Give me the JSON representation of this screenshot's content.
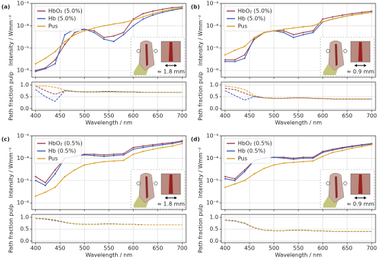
{
  "chart_data": [
    {
      "type": "line",
      "label": "(a)",
      "y_label": "Intensity / Wmm⁻²",
      "yscale": "log",
      "grid": true,
      "legend": "upper left",
      "annotation": "≈ 1.8 mm",
      "x": [
        400,
        420,
        440,
        460,
        480,
        500,
        520,
        540,
        560,
        580,
        600,
        620,
        640,
        660,
        680,
        700
      ],
      "xlim": [
        392,
        708
      ],
      "xticks": [
        400,
        450,
        500,
        550,
        600,
        650,
        700
      ],
      "ylim": [
        5e-07,
        0.001
      ],
      "yticks": [
        {
          "value": 1e-06,
          "label": "10⁻⁶"
        },
        {
          "value": 1e-05,
          "label": "10⁻⁵"
        },
        {
          "value": 0.0001,
          "label": "10⁻⁴"
        },
        {
          "value": 0.001,
          "label": "10⁻³"
        }
      ],
      "series": [
        {
          "name": "HbO₂ (5.0%)",
          "color": "#a0454a",
          "values": [
            1e-06,
            1.3e-06,
            3e-06,
            1.5e-05,
            5e-05,
            7e-05,
            6e-05,
            3e-05,
            3.5e-05,
            5e-05,
            0.0002,
            0.00035,
            0.00045,
            0.00055,
            0.00065,
            0.0007
          ]
        },
        {
          "name": "Hb (5.0%)",
          "color": "#3f5fbf",
          "values": [
            9e-07,
            1.2e-06,
            2e-06,
            4e-05,
            7e-05,
            7e-05,
            5e-05,
            2.5e-05,
            2e-05,
            4e-05,
            0.0001,
            0.0002,
            0.0003,
            0.0004,
            0.0005,
            0.0006
          ]
        },
        {
          "name": "Pus",
          "color": "#d9a020",
          "values": [
            2e-06,
            3.5e-06,
            7e-06,
            2e-05,
            4e-05,
            6e-05,
            8e-05,
            0.0001,
            0.00012,
            0.00014,
            0.00018,
            0.00025,
            0.00035,
            0.00045,
            0.00055,
            0.00065
          ]
        }
      ]
    },
    {
      "type": "line",
      "y_label": "Path fraction pulp",
      "x_label": "Wavelength / nm",
      "grid": true,
      "x": [
        400,
        420,
        440,
        460,
        480,
        500,
        520,
        540,
        560,
        580,
        600,
        620,
        640,
        660,
        680,
        700
      ],
      "xlim": [
        392,
        708
      ],
      "xticks": [
        400,
        450,
        500,
        550,
        600,
        650,
        700
      ],
      "ylim": [
        -0.08,
        1.12
      ],
      "yticks": [
        {
          "value": 0,
          "label": "0.0"
        },
        {
          "value": 0.5,
          "label": "0.5"
        },
        {
          "value": 1,
          "label": "1.0"
        }
      ],
      "series": [
        {
          "color": "#a0454a",
          "values": [
            0.95,
            0.75,
            0.6,
            0.75,
            0.72,
            0.7,
            0.7,
            0.72,
            0.72,
            0.7,
            0.7,
            0.68,
            0.68,
            0.68,
            0.68,
            0.68
          ]
        },
        {
          "color": "#3f5fbf",
          "values": [
            0.8,
            0.5,
            0.3,
            0.75,
            0.72,
            0.7,
            0.7,
            0.72,
            0.72,
            0.7,
            0.7,
            0.68,
            0.68,
            0.68,
            0.68,
            0.68
          ]
        },
        {
          "color": "#d9a020",
          "values": [
            0.95,
            0.95,
            0.9,
            0.78,
            0.72,
            0.7,
            0.7,
            0.7,
            0.7,
            0.7,
            0.7,
            0.68,
            0.68,
            0.68,
            0.68,
            0.68
          ]
        }
      ]
    },
    {
      "type": "line",
      "label": "(b)",
      "y_label": "Intensity / Wmm⁻²",
      "yscale": "log",
      "grid": true,
      "legend": "upper left",
      "annotation": "≈ 0.9 mm",
      "x": [
        400,
        420,
        440,
        460,
        480,
        500,
        520,
        540,
        560,
        580,
        600,
        620,
        640,
        660,
        680,
        700
      ],
      "xlim": [
        392,
        708
      ],
      "xticks": [
        400,
        450,
        500,
        550,
        600,
        650,
        700
      ],
      "ylim": [
        5e-07,
        0.001
      ],
      "yticks": [
        {
          "value": 1e-06,
          "label": "10⁻⁶"
        },
        {
          "value": 1e-05,
          "label": "10⁻⁵"
        },
        {
          "value": 0.0001,
          "label": "10⁻⁴"
        },
        {
          "value": 0.001,
          "label": "10⁻³"
        }
      ],
      "series": [
        {
          "name": "HbO₂ (5.0%)",
          "color": "#a0454a",
          "values": [
            3e-06,
            3e-06,
            5e-06,
            2.5e-05,
            5e-05,
            6e-05,
            6e-05,
            4e-05,
            5e-05,
            6e-05,
            0.0002,
            0.00025,
            0.0003,
            0.00035,
            0.0004,
            0.00045
          ]
        },
        {
          "name": "Hb (5.0%)",
          "color": "#3f5fbf",
          "values": [
            2.5e-06,
            2.5e-06,
            3.5e-06,
            3e-05,
            5e-05,
            6e-05,
            5e-05,
            3e-05,
            4e-05,
            5e-05,
            0.00015,
            0.0002,
            0.00025,
            0.0003,
            0.00035,
            0.0004
          ]
        },
        {
          "name": "Pus",
          "color": "#d9a020",
          "values": [
            5e-06,
            8e-06,
            1.2e-05,
            3e-05,
            5e-05,
            6e-05,
            7e-05,
            8e-05,
            9e-05,
            0.0001,
            0.00015,
            0.0002,
            0.00025,
            0.0003,
            0.00035,
            0.0004
          ]
        }
      ]
    },
    {
      "type": "line",
      "y_label": "Path fraction pulp",
      "x_label": "Wavelength / nm",
      "grid": true,
      "x": [
        400,
        420,
        440,
        460,
        480,
        500,
        520,
        540,
        560,
        580,
        600,
        620,
        640,
        660,
        680,
        700
      ],
      "xlim": [
        392,
        708
      ],
      "xticks": [
        400,
        450,
        500,
        550,
        600,
        650,
        700
      ],
      "ylim": [
        -0.08,
        1.12
      ],
      "yticks": [
        {
          "value": 0,
          "label": "0.0"
        },
        {
          "value": 0.5,
          "label": "0.5"
        },
        {
          "value": 1,
          "label": "1.0"
        }
      ],
      "series": [
        {
          "color": "#a0454a",
          "values": [
            0.85,
            0.8,
            0.65,
            0.5,
            0.45,
            0.43,
            0.43,
            0.45,
            0.45,
            0.43,
            0.42,
            0.4,
            0.4,
            0.4,
            0.4,
            0.4
          ]
        },
        {
          "color": "#3f5fbf",
          "values": [
            0.75,
            0.55,
            0.35,
            0.5,
            0.45,
            0.43,
            0.43,
            0.45,
            0.45,
            0.43,
            0.42,
            0.4,
            0.4,
            0.4,
            0.4,
            0.4
          ]
        },
        {
          "color": "#d9a020",
          "values": [
            0.95,
            0.9,
            0.8,
            0.55,
            0.45,
            0.43,
            0.43,
            0.44,
            0.44,
            0.43,
            0.42,
            0.4,
            0.4,
            0.4,
            0.4,
            0.4
          ]
        }
      ]
    },
    {
      "type": "line",
      "label": "(c)",
      "y_label": "Intensity / Wmm⁻²",
      "yscale": "log",
      "grid": true,
      "legend": "upper left",
      "annotation": "≈ 1.8 mm",
      "x": [
        400,
        420,
        440,
        460,
        480,
        500,
        520,
        540,
        560,
        580,
        600,
        620,
        640,
        660,
        680,
        700
      ],
      "xlim": [
        392,
        708
      ],
      "xticks": [
        400,
        450,
        500,
        550,
        600,
        650,
        700
      ],
      "ylim": [
        5e-07,
        0.001
      ],
      "yticks": [
        {
          "value": 1e-06,
          "label": "10⁻⁶"
        },
        {
          "value": 1e-05,
          "label": "10⁻⁵"
        },
        {
          "value": 0.0001,
          "label": "10⁻⁴"
        },
        {
          "value": 0.001,
          "label": "10⁻³"
        }
      ],
      "series": [
        {
          "name": "HbO₂ (0.5%)",
          "color": "#a0454a",
          "values": [
            1.5e-05,
            8e-06,
            3e-05,
            0.0001,
            0.00012,
            0.00015,
            0.00015,
            0.00014,
            0.00015,
            0.00016,
            0.0003,
            0.00035,
            0.0004,
            0.00045,
            0.0005,
            0.0006
          ]
        },
        {
          "name": "Hb (0.5%)",
          "color": "#3f5fbf",
          "values": [
            1e-05,
            6e-06,
            2e-05,
            0.0001,
            0.00012,
            0.00014,
            0.00013,
            0.00012,
            0.00013,
            0.00014,
            0.00025,
            0.0003,
            0.00035,
            0.0004,
            0.00045,
            0.00055
          ]
        },
        {
          "name": "Pus",
          "color": "#d9a020",
          "values": [
            2e-06,
            3e-06,
            5e-06,
            1.5e-05,
            3e-05,
            5e-05,
            6e-05,
            7e-05,
            7.5e-05,
            8e-05,
            0.00015,
            0.0002,
            0.00025,
            0.0003,
            0.00035,
            0.00045
          ]
        }
      ]
    },
    {
      "type": "line",
      "y_label": "Path fraction pulp",
      "x_label": "Wavelength / nm",
      "grid": true,
      "x": [
        400,
        420,
        440,
        460,
        480,
        500,
        520,
        540,
        560,
        580,
        600,
        620,
        640,
        660,
        680,
        700
      ],
      "xlim": [
        392,
        708
      ],
      "xticks": [
        400,
        450,
        500,
        550,
        600,
        650,
        700
      ],
      "ylim": [
        -0.08,
        1.12
      ],
      "yticks": [
        {
          "value": 0,
          "label": "0.0"
        },
        {
          "value": 0.5,
          "label": "0.5"
        },
        {
          "value": 1,
          "label": "1.0"
        }
      ],
      "series": [
        {
          "color": "#a0454a",
          "values": [
            0.95,
            0.93,
            0.87,
            0.78,
            0.72,
            0.7,
            0.7,
            0.72,
            0.72,
            0.7,
            0.7,
            0.68,
            0.68,
            0.68,
            0.68,
            0.68
          ]
        },
        {
          "color": "#3f5fbf",
          "values": [
            0.95,
            0.92,
            0.86,
            0.78,
            0.72,
            0.7,
            0.7,
            0.72,
            0.72,
            0.7,
            0.7,
            0.68,
            0.68,
            0.68,
            0.68,
            0.68
          ]
        },
        {
          "color": "#d9a020",
          "values": [
            0.96,
            0.94,
            0.89,
            0.79,
            0.72,
            0.7,
            0.7,
            0.71,
            0.71,
            0.7,
            0.7,
            0.68,
            0.68,
            0.68,
            0.68,
            0.68
          ]
        }
      ]
    },
    {
      "type": "line",
      "label": "(d)",
      "y_label": "Intensity / Wmm⁻²",
      "yscale": "log",
      "grid": true,
      "legend": "upper left",
      "annotation": "≈ 0.9 mm",
      "x": [
        400,
        420,
        440,
        460,
        480,
        500,
        520,
        540,
        560,
        580,
        600,
        620,
        640,
        660,
        680,
        700
      ],
      "xlim": [
        392,
        708
      ],
      "xticks": [
        400,
        450,
        500,
        550,
        600,
        650,
        700
      ],
      "ylim": [
        5e-07,
        0.001
      ],
      "yticks": [
        {
          "value": 1e-06,
          "label": "10⁻⁶"
        },
        {
          "value": 1e-05,
          "label": "10⁻⁵"
        },
        {
          "value": 0.0001,
          "label": "10⁻⁴"
        },
        {
          "value": 0.001,
          "label": "10⁻³"
        }
      ],
      "series": [
        {
          "name": "HbO₂ (0.5%)",
          "color": "#a0454a",
          "values": [
            1.5e-05,
            1.2e-05,
            3e-05,
            8e-05,
            0.0001,
            0.00011,
            0.00011,
            0.0001,
            0.00011,
            0.00011,
            0.0002,
            0.00025,
            0.0003,
            0.00035,
            0.0004,
            0.00045
          ]
        },
        {
          "name": "Hb (0.5%)",
          "color": "#3f5fbf",
          "values": [
            1.2e-05,
            1e-05,
            2.5e-05,
            8e-05,
            0.0001,
            0.00011,
            0.0001,
            9e-05,
            0.0001,
            0.0001,
            0.00018,
            0.00023,
            0.00028,
            0.00033,
            0.00038,
            0.00043
          ]
        },
        {
          "name": "Pus",
          "color": "#d9a020",
          "values": [
            5e-06,
            7e-06,
            1e-05,
            2e-05,
            3.5e-05,
            5e-05,
            6e-05,
            6.5e-05,
            7e-05,
            7.5e-05,
            0.00012,
            0.00018,
            0.00022,
            0.00028,
            0.00033,
            0.0004
          ]
        }
      ]
    },
    {
      "type": "line",
      "y_label": "Path fraction pulp",
      "x_label": "Wavelength / nm",
      "grid": true,
      "x": [
        400,
        420,
        440,
        460,
        480,
        500,
        520,
        540,
        560,
        580,
        600,
        620,
        640,
        660,
        680,
        700
      ],
      "xlim": [
        392,
        708
      ],
      "xticks": [
        400,
        450,
        500,
        550,
        600,
        650,
        700
      ],
      "ylim": [
        -0.08,
        1.12
      ],
      "yticks": [
        {
          "value": 0,
          "label": "0.0"
        },
        {
          "value": 0.5,
          "label": "0.5"
        },
        {
          "value": 1,
          "label": "1.0"
        }
      ],
      "series": [
        {
          "color": "#a0454a",
          "values": [
            0.88,
            0.85,
            0.75,
            0.55,
            0.45,
            0.43,
            0.43,
            0.45,
            0.45,
            0.43,
            0.42,
            0.4,
            0.4,
            0.4,
            0.4,
            0.4
          ]
        },
        {
          "color": "#3f5fbf",
          "values": [
            0.87,
            0.84,
            0.74,
            0.55,
            0.45,
            0.43,
            0.43,
            0.45,
            0.45,
            0.43,
            0.42,
            0.4,
            0.4,
            0.4,
            0.4,
            0.4
          ]
        },
        {
          "color": "#d9a020",
          "values": [
            0.89,
            0.86,
            0.76,
            0.56,
            0.45,
            0.43,
            0.43,
            0.44,
            0.44,
            0.43,
            0.42,
            0.4,
            0.4,
            0.4,
            0.4,
            0.4
          ]
        }
      ]
    }
  ]
}
